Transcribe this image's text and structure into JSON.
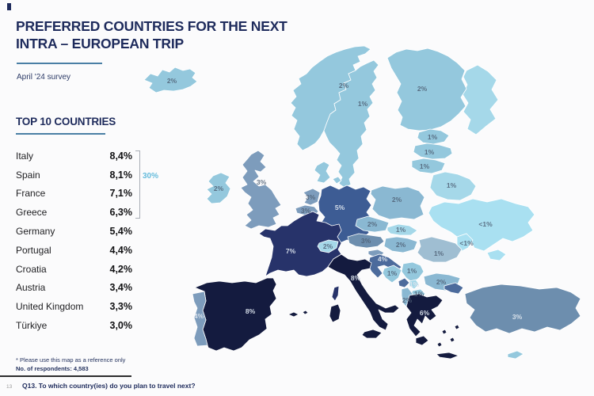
{
  "header": {
    "title_line1": "PREFERRED COUNTRIES FOR THE NEXT",
    "title_line2": "INTRA – EUROPEAN TRIP",
    "subtitle": "April '24 survey"
  },
  "list": {
    "heading": "TOP 10 COUNTRIES",
    "bracket_label": "30%",
    "items": [
      {
        "country": "Italy",
        "value": "8,4%"
      },
      {
        "country": "Spain",
        "value": "8,1%"
      },
      {
        "country": "France",
        "value": "7,1%"
      },
      {
        "country": "Greece",
        "value": "6,3%"
      },
      {
        "country": "Germany",
        "value": "5,4%"
      },
      {
        "country": "Portugal",
        "value": "4,4%"
      },
      {
        "country": "Croatia",
        "value": "4,2%"
      },
      {
        "country": "Austria",
        "value": "3,4%"
      },
      {
        "country": "United Kingdom",
        "value": "3,3%"
      },
      {
        "country": "Türkiye",
        "value": "3,0%"
      }
    ]
  },
  "map": {
    "labels": [
      {
        "id": "iceland",
        "value": "2%"
      },
      {
        "id": "norway",
        "value": "2%"
      },
      {
        "id": "sweden",
        "value": "1%"
      },
      {
        "id": "finland",
        "value": "2%"
      },
      {
        "id": "estonia",
        "value": "1%"
      },
      {
        "id": "latvia",
        "value": "1%"
      },
      {
        "id": "lithuania",
        "value": "1%"
      },
      {
        "id": "belarus",
        "value": "1%"
      },
      {
        "id": "ireland",
        "value": "2%"
      },
      {
        "id": "united_kingdom",
        "value": "3%"
      },
      {
        "id": "netherlands",
        "value": "3%"
      },
      {
        "id": "belgium",
        "value": "3%"
      },
      {
        "id": "germany",
        "value": "5%"
      },
      {
        "id": "france",
        "value": "7%"
      },
      {
        "id": "spain",
        "value": "8%"
      },
      {
        "id": "portugal",
        "value": "4%"
      },
      {
        "id": "italy",
        "value": "8%"
      },
      {
        "id": "switzerland",
        "value": "2%"
      },
      {
        "id": "czechia",
        "value": "2%"
      },
      {
        "id": "poland",
        "value": "2%"
      },
      {
        "id": "slovakia",
        "value": "1%"
      },
      {
        "id": "austria",
        "value": "3%"
      },
      {
        "id": "hungary",
        "value": "2%"
      },
      {
        "id": "croatia",
        "value": "4%"
      },
      {
        "id": "bosnia",
        "value": "1%"
      },
      {
        "id": "serbia",
        "value": "1%"
      },
      {
        "id": "kosovo",
        "value": "1%"
      },
      {
        "id": "north_macedonia",
        "value": "1%"
      },
      {
        "id": "albania",
        "value": "2%"
      },
      {
        "id": "romania",
        "value": "1%"
      },
      {
        "id": "moldova",
        "value": "<1%"
      },
      {
        "id": "ukraine",
        "value": "<1%"
      },
      {
        "id": "bulgaria",
        "value": "2%"
      },
      {
        "id": "greece",
        "value": "6%"
      },
      {
        "id": "turkey",
        "value": "3%"
      }
    ]
  },
  "footnotes": {
    "note": "* Please use this map as a reference only",
    "respondents": "No. of respondents: 4,583",
    "page_number": "13",
    "question": "Q13. To which country(ies) do you plan to travel next?"
  },
  "colors": {
    "title_navy": "#1e2b5c",
    "underline_teal": "#4a7fa5",
    "bracket_blue": "#66bcdc",
    "shade_darkest": "#141b3f",
    "shade_dark": "#27336a",
    "shade_germany": "#3d5c94",
    "shade_meddark": "#4c6b9c",
    "shade_medium": "#6d8eae",
    "shade_medgrey": "#7d9cbc",
    "shade_lightmed": "#8ab8d2",
    "shade_light": "#94c8dd",
    "shade_lighter": "#a5d8e9",
    "shade_lightest": "#a9e0f1",
    "shade_romania": "#9fbed2",
    "label_on_light": "#4e5f74",
    "label_on_dark": "#dde5ee"
  },
  "chart_data": [
    {
      "type": "table",
      "title": "TOP 10 COUNTRIES",
      "categories": [
        "Italy",
        "Spain",
        "France",
        "Greece",
        "Germany",
        "Portugal",
        "Croatia",
        "Austria",
        "United Kingdom",
        "Türkiye"
      ],
      "values": [
        8.4,
        8.1,
        7.1,
        6.3,
        5.4,
        4.4,
        4.2,
        3.4,
        3.3,
        3.0
      ],
      "unit": "%",
      "annotation": "Bracket over top 4 entries labeled 30%"
    },
    {
      "type": "heatmap",
      "subtype": "choropleth map of Europe",
      "title": "Preferred countries for the next intra-European trip (April '24 survey)",
      "points": [
        {
          "country": "Iceland",
          "value": "2%"
        },
        {
          "country": "Norway",
          "value": "2%"
        },
        {
          "country": "Sweden",
          "value": "1%"
        },
        {
          "country": "Finland",
          "value": "2%"
        },
        {
          "country": "Estonia",
          "value": "1%"
        },
        {
          "country": "Latvia",
          "value": "1%"
        },
        {
          "country": "Lithuania",
          "value": "1%"
        },
        {
          "country": "Belarus",
          "value": "1%"
        },
        {
          "country": "Ireland",
          "value": "2%"
        },
        {
          "country": "United Kingdom",
          "value": "3%"
        },
        {
          "country": "Netherlands",
          "value": "3%"
        },
        {
          "country": "Belgium",
          "value": "3%"
        },
        {
          "country": "Germany",
          "value": "5%"
        },
        {
          "country": "France",
          "value": "7%"
        },
        {
          "country": "Spain",
          "value": "8%"
        },
        {
          "country": "Portugal",
          "value": "4%"
        },
        {
          "country": "Italy",
          "value": "8%"
        },
        {
          "country": "Switzerland",
          "value": "2%"
        },
        {
          "country": "Czechia",
          "value": "2%"
        },
        {
          "country": "Poland",
          "value": "2%"
        },
        {
          "country": "Slovakia",
          "value": "1%"
        },
        {
          "country": "Austria",
          "value": "3%"
        },
        {
          "country": "Hungary",
          "value": "2%"
        },
        {
          "country": "Croatia",
          "value": "4%"
        },
        {
          "country": "Bosnia and Herzegovina",
          "value": "1%"
        },
        {
          "country": "Serbia",
          "value": "1%"
        },
        {
          "country": "Kosovo",
          "value": "1%"
        },
        {
          "country": "North Macedonia",
          "value": "1%"
        },
        {
          "country": "Albania",
          "value": "2%"
        },
        {
          "country": "Romania",
          "value": "1%"
        },
        {
          "country": "Moldova",
          "value": "<1%"
        },
        {
          "country": "Ukraine",
          "value": "<1%"
        },
        {
          "country": "Bulgaria",
          "value": "2%"
        },
        {
          "country": "Greece",
          "value": "6%"
        },
        {
          "country": "Türkiye",
          "value": "3%"
        }
      ]
    }
  ]
}
